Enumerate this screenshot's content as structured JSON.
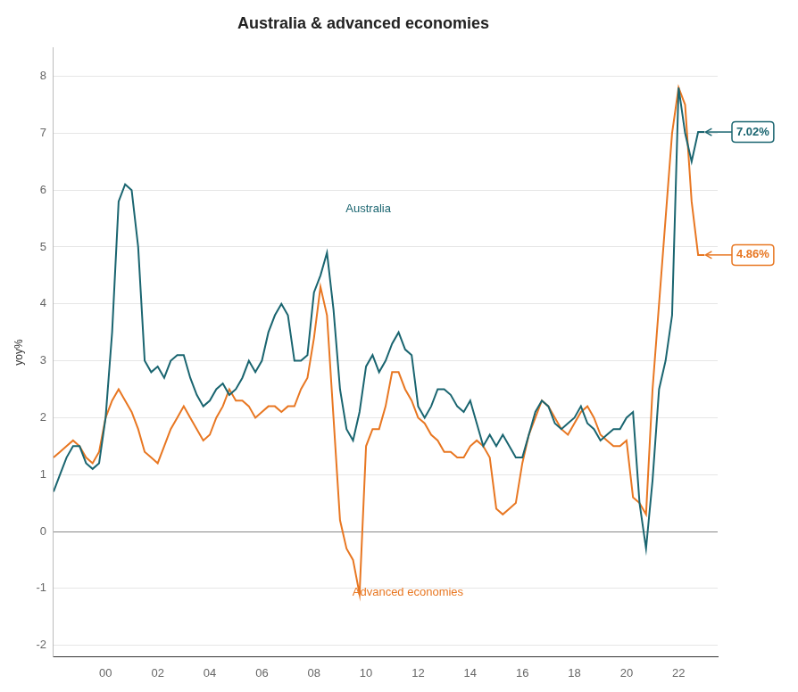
{
  "chart_data": {
    "type": "line",
    "title": "Australia & advanced economies",
    "y_label": "yoy%",
    "background_color": "#ffffff",
    "grid": true,
    "xlim": [
      1998.0,
      2023.5
    ],
    "xticks": [
      {
        "value": 2000,
        "label": "00"
      },
      {
        "value": 2002,
        "label": "02"
      },
      {
        "value": 2004,
        "label": "04"
      },
      {
        "value": 2006,
        "label": "06"
      },
      {
        "value": 2008,
        "label": "08"
      },
      {
        "value": 2010,
        "label": "10"
      },
      {
        "value": 2012,
        "label": "12"
      },
      {
        "value": 2014,
        "label": "14"
      },
      {
        "value": 2016,
        "label": "16"
      },
      {
        "value": 2018,
        "label": "18"
      },
      {
        "value": 2020,
        "label": "20"
      },
      {
        "value": 2022,
        "label": "22"
      }
    ],
    "ylim": [
      -2.2,
      8.5
    ],
    "yticks": [
      -2,
      -1,
      0,
      1,
      2,
      3,
      4,
      5,
      6,
      7,
      8
    ],
    "x": [
      1998.0,
      1998.25,
      1998.5,
      1998.75,
      1999.0,
      1999.25,
      1999.5,
      1999.75,
      2000.0,
      2000.25,
      2000.5,
      2000.75,
      2001.0,
      2001.25,
      2001.5,
      2001.75,
      2002.0,
      2002.25,
      2002.5,
      2002.75,
      2003.0,
      2003.25,
      2003.5,
      2003.75,
      2004.0,
      2004.25,
      2004.5,
      2004.75,
      2005.0,
      2005.25,
      2005.5,
      2005.75,
      2006.0,
      2006.25,
      2006.5,
      2006.75,
      2007.0,
      2007.25,
      2007.5,
      2007.75,
      2008.0,
      2008.25,
      2008.5,
      2008.75,
      2009.0,
      2009.25,
      2009.5,
      2009.75,
      2010.0,
      2010.25,
      2010.5,
      2010.75,
      2011.0,
      2011.25,
      2011.5,
      2011.75,
      2012.0,
      2012.25,
      2012.5,
      2012.75,
      2013.0,
      2013.25,
      2013.5,
      2013.75,
      2014.0,
      2014.25,
      2014.5,
      2014.75,
      2015.0,
      2015.25,
      2015.5,
      2015.75,
      2016.0,
      2016.25,
      2016.5,
      2016.75,
      2017.0,
      2017.25,
      2017.5,
      2017.75,
      2018.0,
      2018.25,
      2018.5,
      2018.75,
      2019.0,
      2019.25,
      2019.5,
      2019.75,
      2020.0,
      2020.25,
      2020.5,
      2020.75,
      2021.0,
      2021.25,
      2021.5,
      2021.75,
      2022.0,
      2022.25,
      2022.5,
      2022.75,
      2023.0
    ],
    "series": [
      {
        "name": "Australia",
        "color": "#1a6570",
        "values": [
          0.7,
          1.0,
          1.3,
          1.5,
          1.5,
          1.2,
          1.1,
          1.2,
          2.0,
          3.5,
          5.8,
          6.1,
          6.0,
          5.0,
          3.0,
          2.8,
          2.9,
          2.7,
          3.0,
          3.1,
          3.1,
          2.7,
          2.4,
          2.2,
          2.3,
          2.5,
          2.6,
          2.4,
          2.5,
          2.7,
          3.0,
          2.8,
          3.0,
          3.5,
          3.8,
          4.0,
          3.8,
          3.0,
          3.0,
          3.1,
          4.2,
          4.5,
          4.9,
          3.9,
          2.5,
          1.8,
          1.6,
          2.1,
          2.9,
          3.1,
          2.8,
          3.0,
          3.3,
          3.5,
          3.2,
          3.1,
          2.2,
          2.0,
          2.2,
          2.5,
          2.5,
          2.4,
          2.2,
          2.1,
          2.3,
          1.9,
          1.5,
          1.7,
          1.5,
          1.7,
          1.5,
          1.3,
          1.3,
          1.7,
          2.1,
          2.3,
          2.2,
          1.9,
          1.8,
          1.9,
          2.0,
          2.2,
          1.9,
          1.8,
          1.6,
          1.7,
          1.8,
          1.8,
          2.0,
          2.1,
          0.5,
          -0.3,
          0.9,
          2.5,
          3.0,
          3.8,
          7.8,
          7.0,
          6.5,
          7.02,
          7.02
        ]
      },
      {
        "name": "Advanced economies",
        "color": "#e87722",
        "values": [
          1.3,
          1.4,
          1.5,
          1.6,
          1.5,
          1.3,
          1.2,
          1.4,
          2.0,
          2.3,
          2.5,
          2.3,
          2.1,
          1.8,
          1.4,
          1.3,
          1.2,
          1.5,
          1.8,
          2.0,
          2.2,
          2.0,
          1.8,
          1.6,
          1.7,
          2.0,
          2.2,
          2.5,
          2.3,
          2.3,
          2.2,
          2.0,
          2.1,
          2.2,
          2.2,
          2.1,
          2.2,
          2.2,
          2.5,
          2.7,
          3.4,
          4.3,
          3.8,
          2.0,
          0.2,
          -0.3,
          -0.5,
          -1.1,
          1.5,
          1.8,
          1.8,
          2.2,
          2.8,
          2.8,
          2.5,
          2.3,
          2.0,
          1.9,
          1.7,
          1.6,
          1.4,
          1.4,
          1.3,
          1.3,
          1.5,
          1.6,
          1.5,
          1.3,
          0.4,
          0.3,
          0.4,
          0.5,
          1.2,
          1.7,
          2.0,
          2.3,
          2.2,
          2.0,
          1.8,
          1.7,
          1.9,
          2.1,
          2.2,
          2.0,
          1.7,
          1.6,
          1.5,
          1.5,
          1.6,
          0.6,
          0.5,
          0.3,
          2.5,
          4.0,
          5.5,
          7.0,
          7.8,
          7.5,
          5.8,
          4.86,
          4.86
        ]
      }
    ],
    "annotations": [
      {
        "text": "7.02%",
        "x": 2023.0,
        "y": 7.02,
        "color": "#1a6570"
      },
      {
        "text": "4.86%",
        "x": 2023.0,
        "y": 4.86,
        "color": "#e87722"
      }
    ]
  }
}
